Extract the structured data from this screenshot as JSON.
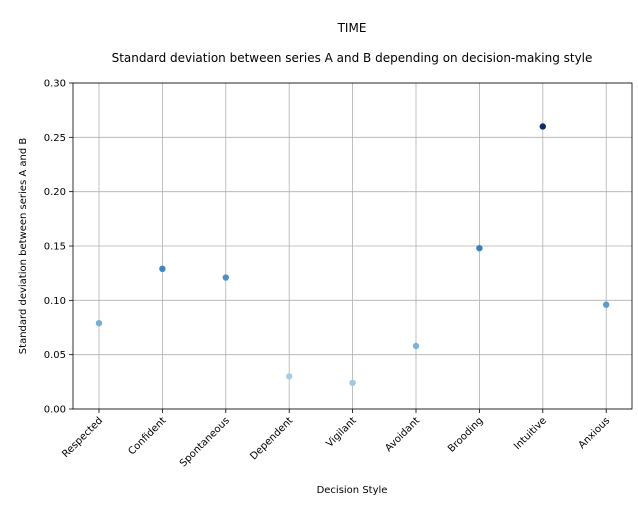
{
  "chart_data": {
    "type": "scatter",
    "title": "TIME",
    "subtitle": "Standard deviation between series A and B depending on decision-making style",
    "xlabel": "Decision Style",
    "ylabel": "Standard deviation between series A and B",
    "categories": [
      "Respected",
      "Confident",
      "Spontaneous",
      "Dependent",
      "Vigilant",
      "Avoidant",
      "Brooding",
      "Intuitive",
      "Anxious"
    ],
    "values": [
      0.079,
      0.129,
      0.121,
      0.03,
      0.024,
      0.058,
      0.148,
      0.26,
      0.096
    ],
    "ylim": [
      0.0,
      0.3
    ],
    "yticks": [
      "0.00",
      "0.05",
      "0.10",
      "0.15",
      "0.20",
      "0.25",
      "0.30"
    ],
    "grid": true,
    "point_colors": [
      "#76aed3",
      "#3d86bd",
      "#4a91c4",
      "#a6cde4",
      "#a0c8e2",
      "#7db3d8",
      "#3482bc",
      "#0c2a6a",
      "#5a9ccb"
    ]
  }
}
